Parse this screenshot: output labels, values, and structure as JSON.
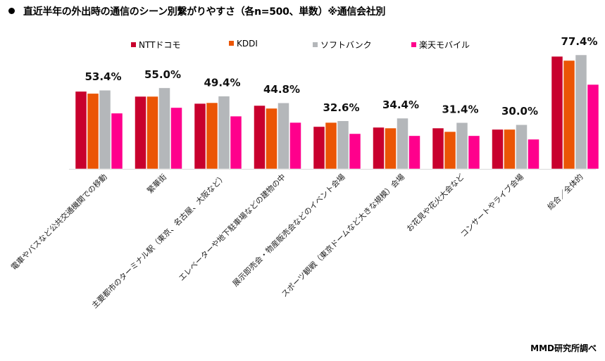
{
  "title": "直近半年の外出時の通信のシーン別繋がりやすさ（各n=500、単数）※通信会社別",
  "source": "MMD研究所調べ",
  "chart_data": {
    "type": "bar",
    "title": "直近半年の外出時の通信のシーン別繋がりやすさ（各n=500、単数）※通信会社別",
    "xlabel": "",
    "ylabel": "",
    "ylim": [
      0,
      80
    ],
    "grid": false,
    "legend_position": "top",
    "categories": [
      "電車やバスなど公共交通機関での移動",
      "繁華街",
      "主要都市のターミナル駅（東京、名古屋、大阪など）",
      "エレベーターや地下駐車場などの建物の中",
      "展示即売会・物産販売会などのイベント会場",
      "スポーツ観戦（東京ドームなど大きな規模）会場",
      "お花見や花火大会など",
      "コンサートやライブ会場",
      "総合／全体的"
    ],
    "series": [
      {
        "name": "NTTドコモ",
        "color": "#C8002D",
        "values": [
          52.6,
          49.2,
          44.4,
          43.0,
          28.7,
          28.2,
          27.7,
          26.8,
          76.4
        ]
      },
      {
        "name": "KDDI",
        "color": "#EB5505",
        "values": [
          51.2,
          49.2,
          44.9,
          41.1,
          31.5,
          27.7,
          25.3,
          26.8,
          73.6
        ]
      },
      {
        "name": "ソフトバンク",
        "color": "#B4B7BA",
        "values": [
          53.4,
          55.0,
          49.4,
          44.8,
          32.6,
          34.4,
          31.4,
          30.0,
          77.4
        ]
      },
      {
        "name": "楽天モバイル",
        "color": "#FF008C",
        "values": [
          37.8,
          41.6,
          35.8,
          31.5,
          23.9,
          22.5,
          22.5,
          20.1,
          57.3
        ]
      }
    ],
    "data_labels": [
      "53.4%",
      "55.0%",
      "49.4%",
      "44.8%",
      "32.6%",
      "34.4%",
      "31.4%",
      "30.0%",
      "77.4%"
    ]
  }
}
